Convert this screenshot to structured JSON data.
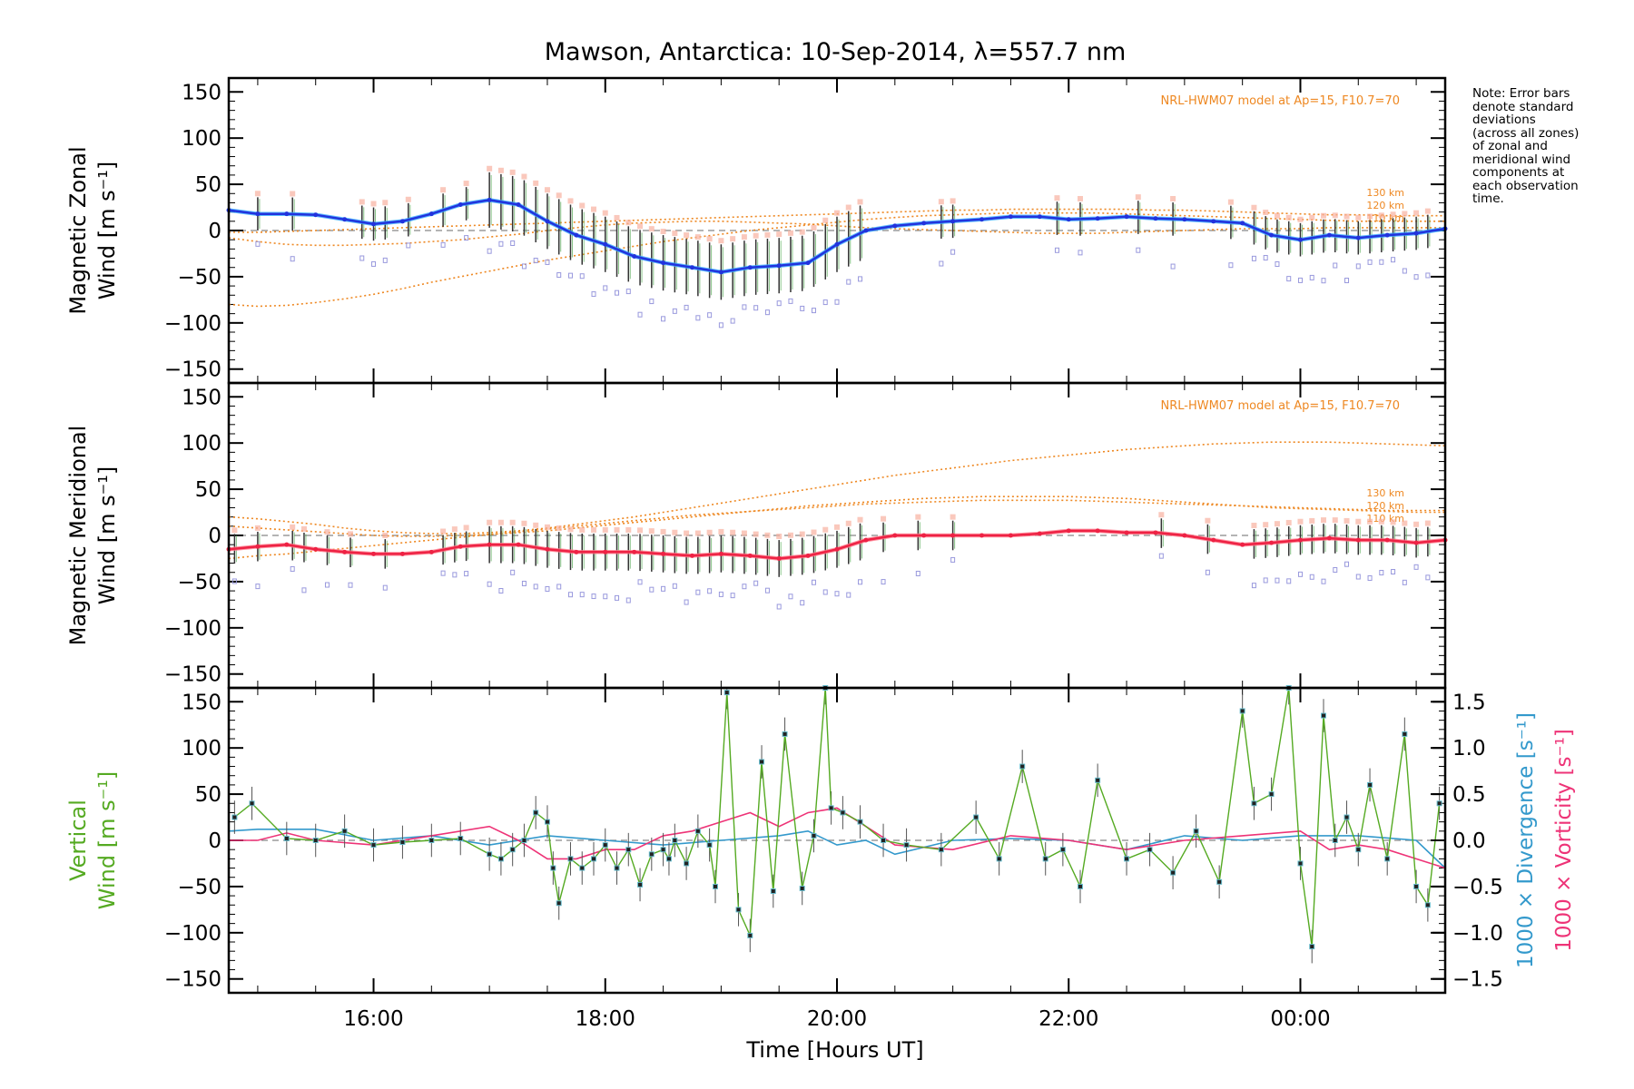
{
  "title": "Mawson, Antarctica: 10-Sep-2014, λ=557.7 nm",
  "note": "Note: Error bars\ndenote standard\ndeviations\n(across all zones)\nof zonal and\nmeridional wind\ncomponents at\neach observation\ntime.",
  "colors": {
    "zonal": "#2233dd",
    "zonal_fit": "#33aaff",
    "meridional": "#ee2244",
    "meridional_fit": "#ff7788",
    "vertical": "#55aa22",
    "divergence": "#3399cc",
    "vorticity": "#ee3377",
    "model": "#ee8822",
    "points": "#9999dd",
    "zero": "#888888"
  },
  "x_axis": {
    "label": "Time [Hours UT]",
    "range_hours": [
      14.75,
      25.25
    ],
    "ticks": [
      "16:00",
      "18:00",
      "20:00",
      "22:00",
      "00:00"
    ],
    "tick_hours": [
      16,
      18,
      20,
      22,
      24
    ]
  },
  "chart_data": [
    {
      "type": "line",
      "name": "zonal",
      "ylabel_line1": "Magnetic Zonal",
      "ylabel_line2": "Wind [m s⁻¹]",
      "ylim": [
        -165,
        165
      ],
      "y_ticks": [
        150,
        100,
        50,
        0,
        -50,
        -100,
        -150
      ],
      "model_label": "NRL-HWM07 model at Ap=15, F10.7=70",
      "model_height_labels": [
        "130 km",
        "120 km",
        "110 km"
      ],
      "x_hours": [
        14.75,
        15.0,
        15.25,
        15.5,
        15.75,
        16.0,
        16.25,
        16.5,
        16.75,
        17.0,
        17.25,
        17.5,
        17.75,
        18.0,
        18.25,
        18.5,
        18.75,
        19.0,
        19.25,
        19.5,
        19.75,
        20.0,
        20.25,
        20.5,
        20.75,
        21.0,
        21.25,
        21.5,
        21.75,
        22.0,
        22.25,
        22.5,
        22.75,
        23.0,
        23.25,
        23.5,
        23.75,
        24.0,
        24.25,
        24.5,
        24.75,
        25.0,
        25.25
      ],
      "mean_wind": [
        22,
        18,
        18,
        17,
        12,
        7,
        10,
        18,
        28,
        33,
        28,
        10,
        -5,
        -15,
        -28,
        -35,
        -40,
        -45,
        -40,
        -38,
        -35,
        -15,
        0,
        5,
        8,
        10,
        12,
        15,
        15,
        12,
        13,
        15,
        13,
        12,
        10,
        8,
        -5,
        -10,
        -5,
        -8,
        -5,
        -3,
        2
      ],
      "models": [
        {
          "name": "110 km",
          "values": [
            -8,
            -12,
            -15,
            -16,
            -16,
            -15,
            -14,
            -12,
            -10,
            -7,
            -4,
            0,
            3,
            6,
            8,
            9,
            10,
            10,
            9,
            8,
            7,
            5,
            3,
            2,
            1,
            0,
            -1,
            -2,
            -3,
            -3,
            -3,
            -2,
            -1,
            0,
            1,
            2,
            2,
            2,
            3,
            3,
            3,
            3,
            3
          ]
        },
        {
          "name": "120 km",
          "values": [
            -80,
            -82,
            -81,
            -78,
            -74,
            -69,
            -63,
            -56,
            -50,
            -44,
            -38,
            -32,
            -27,
            -22,
            -17,
            -12,
            -8,
            -4,
            0,
            3,
            6,
            9,
            12,
            14,
            16,
            17,
            18,
            19,
            19,
            19,
            19,
            18,
            17,
            16,
            15,
            14,
            13,
            12,
            11,
            10,
            10,
            10,
            10
          ]
        },
        {
          "name": "130 km",
          "values": [
            -2,
            -2,
            -1,
            0,
            1,
            2,
            3,
            4,
            5,
            6,
            7,
            8,
            9,
            10,
            11,
            12,
            13,
            14,
            15,
            16,
            17,
            18,
            19,
            20,
            21,
            22,
            22,
            23,
            23,
            23,
            23,
            23,
            22,
            22,
            21,
            20,
            19,
            18,
            17,
            17,
            16,
            16,
            16
          ]
        }
      ]
    },
    {
      "type": "line",
      "name": "meridional",
      "ylabel_line1": "Magnetic Meridional",
      "ylabel_line2": "Wind [m s⁻¹]",
      "ylim": [
        -165,
        165
      ],
      "y_ticks": [
        150,
        100,
        50,
        0,
        -50,
        -100,
        -150
      ],
      "model_label": "NRL-HWM07 model at Ap=15, F10.7=70",
      "model_height_labels": [
        "130 km",
        "120 km",
        "110 km"
      ],
      "x_hours": [
        14.75,
        15.0,
        15.25,
        15.5,
        15.75,
        16.0,
        16.25,
        16.5,
        16.75,
        17.0,
        17.25,
        17.5,
        17.75,
        18.0,
        18.25,
        18.5,
        18.75,
        19.0,
        19.25,
        19.5,
        19.75,
        20.0,
        20.25,
        20.5,
        20.75,
        21.0,
        21.25,
        21.5,
        21.75,
        22.0,
        22.25,
        22.5,
        22.75,
        23.0,
        23.25,
        23.5,
        23.75,
        24.0,
        24.25,
        24.5,
        24.75,
        25.0,
        25.25
      ],
      "mean_wind": [
        -15,
        -12,
        -10,
        -15,
        -18,
        -20,
        -20,
        -18,
        -12,
        -10,
        -10,
        -15,
        -18,
        -18,
        -18,
        -20,
        -22,
        -20,
        -22,
        -25,
        -22,
        -15,
        -5,
        0,
        0,
        0,
        0,
        0,
        2,
        5,
        5,
        3,
        3,
        0,
        -5,
        -10,
        -8,
        -5,
        -3,
        -5,
        -5,
        -8,
        -5
      ],
      "models": [
        {
          "name": "110 km",
          "values": [
            -25,
            -22,
            -20,
            -17,
            -14,
            -11,
            -8,
            -5,
            -2,
            1,
            4,
            7,
            10,
            13,
            16,
            19,
            22,
            24,
            26,
            28,
            30,
            32,
            34,
            35,
            36,
            37,
            38,
            38,
            38,
            38,
            37,
            36,
            35,
            34,
            33,
            32,
            31,
            30,
            29,
            28,
            27,
            27,
            27
          ]
        },
        {
          "name": "120 km",
          "values": [
            20,
            18,
            15,
            12,
            8,
            5,
            3,
            2,
            2,
            3,
            5,
            8,
            12,
            16,
            20,
            25,
            30,
            35,
            40,
            45,
            50,
            55,
            60,
            65,
            69,
            73,
            77,
            81,
            84,
            87,
            90,
            93,
            95,
            97,
            99,
            100,
            101,
            101,
            101,
            100,
            99,
            98,
            97
          ]
        },
        {
          "name": "130 km",
          "values": [
            10,
            8,
            6,
            4,
            2,
            0,
            -1,
            -1,
            0,
            1,
            3,
            5,
            8,
            11,
            14,
            17,
            20,
            23,
            26,
            29,
            32,
            34,
            36,
            38,
            40,
            41,
            42,
            42,
            42,
            42,
            41,
            40,
            38,
            36,
            34,
            32,
            30,
            29,
            28,
            27,
            26,
            25,
            25
          ]
        }
      ]
    },
    {
      "type": "line",
      "name": "vertical",
      "ylabel_line1": "Vertical",
      "ylabel_line2": "Wind [m s⁻¹]",
      "ylim": [
        -165,
        165
      ],
      "y_ticks": [
        150,
        100,
        50,
        0,
        -50,
        -100,
        -150
      ],
      "y2_ticks": [
        "1.5",
        "1.0",
        "0.5",
        "0.0",
        "−0.5",
        "−1.0",
        "−1.5"
      ],
      "y2_values": [
        1.5,
        1.0,
        0.5,
        0.0,
        -0.5,
        -1.0,
        -1.5
      ],
      "y2_label_divergence": "1000 × Divergence [s⁻¹]",
      "y2_label_vorticity": "1000 × Vorticity [s⁻¹]",
      "vertical_x": [
        14.8,
        14.95,
        15.25,
        15.5,
        15.75,
        16.0,
        16.25,
        16.5,
        16.75,
        17.0,
        17.1,
        17.2,
        17.3,
        17.4,
        17.5,
        17.55,
        17.6,
        17.7,
        17.8,
        17.9,
        18.0,
        18.1,
        18.2,
        18.3,
        18.4,
        18.5,
        18.55,
        18.6,
        18.7,
        18.8,
        18.9,
        18.95,
        19.05,
        19.15,
        19.25,
        19.35,
        19.45,
        19.55,
        19.7,
        19.8,
        19.9,
        19.95,
        20.05,
        20.2,
        20.4,
        20.6,
        20.9,
        21.2,
        21.4,
        21.6,
        21.8,
        21.95,
        22.1,
        22.25,
        22.5,
        22.7,
        22.9,
        23.1,
        23.3,
        23.5,
        23.6,
        23.75,
        23.9,
        24.0,
        24.1,
        24.2,
        24.3,
        24.4,
        24.5,
        24.6,
        24.75,
        24.9,
        25.0,
        25.1,
        25.2
      ],
      "vertical_values": [
        25,
        40,
        2,
        0,
        10,
        -5,
        -2,
        0,
        2,
        -15,
        -20,
        -10,
        0,
        30,
        20,
        -30,
        -68,
        -20,
        -30,
        -20,
        -5,
        -30,
        -10,
        -48,
        -15,
        -10,
        -20,
        0,
        -25,
        10,
        -5,
        -50,
        160,
        -75,
        -103,
        85,
        -55,
        115,
        -52,
        5,
        165,
        35,
        30,
        20,
        0,
        -5,
        -10,
        25,
        -20,
        80,
        -20,
        -10,
        -50,
        65,
        -20,
        -10,
        -35,
        10,
        -45,
        140,
        40,
        50,
        165,
        -25,
        -115,
        135,
        0,
        25,
        -10,
        60,
        -20,
        115,
        -50,
        -70,
        40
      ],
      "divergence_x": [
        14.75,
        15.0,
        15.5,
        16.0,
        16.5,
        17.0,
        17.5,
        18.0,
        18.5,
        19.0,
        19.5,
        19.75,
        20.0,
        20.25,
        20.5,
        21.0,
        21.5,
        22.0,
        22.5,
        23.0,
        23.5,
        24.0,
        24.5,
        25.0,
        25.25
      ],
      "divergence_values": [
        0.1,
        0.12,
        0.12,
        0.0,
        0.05,
        -0.05,
        0.05,
        0.0,
        -0.05,
        0.0,
        0.05,
        0.1,
        -0.05,
        0.0,
        -0.15,
        0.0,
        0.02,
        0.0,
        -0.1,
        0.05,
        0.0,
        0.05,
        0.05,
        0.0,
        -0.3
      ],
      "vorticity_x": [
        14.75,
        15.0,
        15.25,
        15.5,
        16.0,
        16.5,
        17.0,
        17.25,
        17.5,
        17.75,
        18.0,
        18.25,
        18.5,
        18.75,
        19.0,
        19.25,
        19.5,
        19.75,
        20.0,
        20.25,
        20.5,
        21.0,
        21.5,
        22.0,
        22.5,
        23.0,
        23.5,
        24.0,
        24.25,
        24.5,
        24.75,
        25.0,
        25.25
      ],
      "vorticity_values": [
        0.0,
        0.0,
        0.08,
        0.0,
        -0.05,
        0.05,
        0.15,
        0.0,
        -0.2,
        -0.2,
        -0.1,
        -0.1,
        0.05,
        0.1,
        0.2,
        0.3,
        0.15,
        0.3,
        0.35,
        0.15,
        -0.05,
        -0.1,
        0.05,
        0.0,
        -0.1,
        0.0,
        0.05,
        0.1,
        -0.1,
        -0.05,
        -0.1,
        -0.2,
        -0.3
      ]
    }
  ]
}
